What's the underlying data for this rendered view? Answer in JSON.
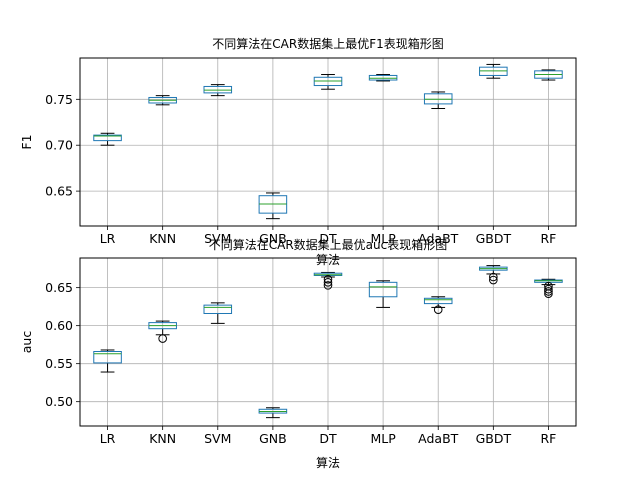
{
  "chart_data": [
    {
      "type": "box",
      "title": "不同算法在CAR数据集上最优F1表现箱形图",
      "xlabel": "算法",
      "ylabel": "F1",
      "ylim": [
        0.612,
        0.795
      ],
      "yticks": [
        0.65,
        0.7,
        0.75
      ],
      "ytick_labels": [
        "0.65",
        "0.70",
        "0.75"
      ],
      "grid": true,
      "categories": [
        "LR",
        "KNN",
        "SVM",
        "GNB",
        "DT",
        "MLP",
        "AdaBT",
        "GBDT",
        "RF"
      ],
      "boxes": [
        {
          "whislo": 0.7,
          "q1": 0.705,
          "med": 0.71,
          "q3": 0.711,
          "whishi": 0.713,
          "fliers": []
        },
        {
          "whislo": 0.744,
          "q1": 0.746,
          "med": 0.749,
          "q3": 0.752,
          "whishi": 0.754,
          "fliers": []
        },
        {
          "whislo": 0.754,
          "q1": 0.757,
          "med": 0.76,
          "q3": 0.764,
          "whishi": 0.766,
          "fliers": []
        },
        {
          "whislo": 0.62,
          "q1": 0.626,
          "med": 0.636,
          "q3": 0.645,
          "whishi": 0.648,
          "fliers": []
        },
        {
          "whislo": 0.761,
          "q1": 0.765,
          "med": 0.77,
          "q3": 0.774,
          "whishi": 0.777,
          "fliers": []
        },
        {
          "whislo": 0.77,
          "q1": 0.771,
          "med": 0.773,
          "q3": 0.776,
          "whishi": 0.777,
          "fliers": []
        },
        {
          "whislo": 0.74,
          "q1": 0.745,
          "med": 0.75,
          "q3": 0.756,
          "whishi": 0.758,
          "fliers": []
        },
        {
          "whislo": 0.773,
          "q1": 0.776,
          "med": 0.781,
          "q3": 0.785,
          "whishi": 0.788,
          "fliers": []
        },
        {
          "whislo": 0.771,
          "q1": 0.773,
          "med": 0.777,
          "q3": 0.781,
          "whishi": 0.782,
          "fliers": []
        }
      ]
    },
    {
      "type": "box",
      "title": "不同算法在CAR数据集上最优auc表现箱形图",
      "xlabel": "算法",
      "ylabel": "auc",
      "ylim": [
        0.468,
        0.689
      ],
      "yticks": [
        0.5,
        0.55,
        0.6,
        0.65
      ],
      "ytick_labels": [
        "0.50",
        "0.55",
        "0.60",
        "0.65"
      ],
      "grid": true,
      "categories": [
        "LR",
        "KNN",
        "SVM",
        "GNB",
        "DT",
        "MLP",
        "AdaBT",
        "GBDT",
        "RF"
      ],
      "boxes": [
        {
          "whislo": 0.539,
          "q1": 0.551,
          "med": 0.563,
          "q3": 0.566,
          "whishi": 0.568,
          "fliers": []
        },
        {
          "whislo": 0.588,
          "q1": 0.596,
          "med": 0.6,
          "q3": 0.604,
          "whishi": 0.606,
          "fliers": [
            0.583
          ]
        },
        {
          "whislo": 0.603,
          "q1": 0.616,
          "med": 0.624,
          "q3": 0.627,
          "whishi": 0.63,
          "fliers": []
        },
        {
          "whislo": 0.479,
          "q1": 0.485,
          "med": 0.487,
          "q3": 0.49,
          "whishi": 0.492,
          "fliers": []
        },
        {
          "whislo": 0.664,
          "q1": 0.666,
          "med": 0.667,
          "q3": 0.669,
          "whishi": 0.67,
          "fliers": [
            0.661,
            0.657,
            0.653
          ]
        },
        {
          "whislo": 0.624,
          "q1": 0.638,
          "med": 0.651,
          "q3": 0.657,
          "whishi": 0.659,
          "fliers": []
        },
        {
          "whislo": 0.624,
          "q1": 0.629,
          "med": 0.634,
          "q3": 0.636,
          "whishi": 0.638,
          "fliers": [
            0.621
          ]
        },
        {
          "whislo": 0.668,
          "q1": 0.673,
          "med": 0.675,
          "q3": 0.677,
          "whishi": 0.679,
          "fliers": [
            0.664,
            0.66
          ]
        },
        {
          "whislo": 0.654,
          "q1": 0.657,
          "med": 0.659,
          "q3": 0.66,
          "whishi": 0.661,
          "fliers": [
            0.652,
            0.648,
            0.645,
            0.642
          ]
        }
      ]
    }
  ],
  "colors": {
    "box": "#1f77b4",
    "median": "#2ca02c",
    "whisker": "#000000",
    "grid": "#b0b0b0",
    "axes": "#000000"
  }
}
